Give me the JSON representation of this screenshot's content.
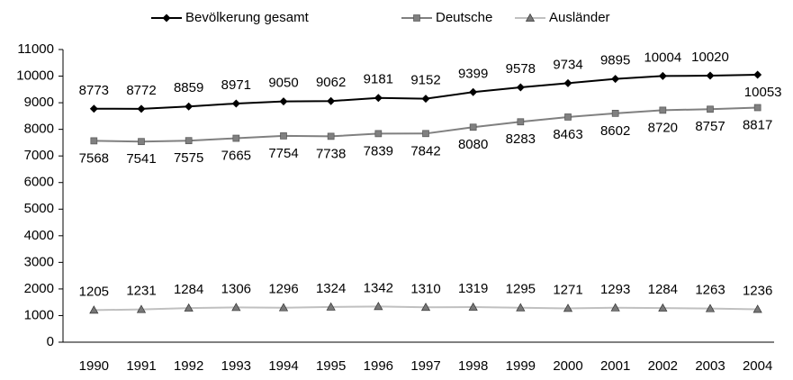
{
  "chart_data": {
    "type": "line",
    "categories": [
      "1990",
      "1991",
      "1992",
      "1993",
      "1994",
      "1995",
      "1996",
      "1997",
      "1998",
      "1999",
      "2000",
      "2001",
      "2002",
      "2003",
      "2004"
    ],
    "series": [
      {
        "name": "Bevölkerung gesamt",
        "color": "#000000",
        "marker": "diamond",
        "values": [
          8773,
          8772,
          8859,
          8971,
          9050,
          9062,
          9181,
          9152,
          9399,
          9578,
          9734,
          9895,
          10004,
          10020,
          10053
        ]
      },
      {
        "name": "Deutsche",
        "color": "#808080",
        "marker": "square",
        "values": [
          7568,
          7541,
          7575,
          7665,
          7754,
          7738,
          7839,
          7842,
          8080,
          8283,
          8463,
          8602,
          8720,
          8757,
          8817
        ]
      },
      {
        "name": "Ausländer",
        "color": "#c0c0c0",
        "marker": "triangle",
        "values": [
          1205,
          1231,
          1284,
          1306,
          1296,
          1324,
          1342,
          1310,
          1319,
          1295,
          1271,
          1293,
          1284,
          1263,
          1236
        ]
      }
    ],
    "ylim": [
      0,
      11000
    ],
    "yticks": [
      0,
      1000,
      2000,
      3000,
      4000,
      5000,
      6000,
      7000,
      8000,
      9000,
      10000,
      11000
    ],
    "grid": false,
    "legend": "top"
  }
}
